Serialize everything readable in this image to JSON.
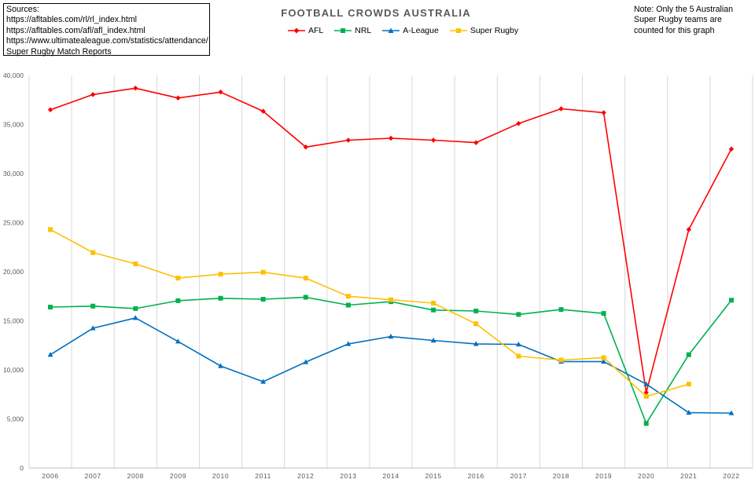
{
  "sources": {
    "heading": "Sources:",
    "lines": [
      "https://afltables.com/rl/rl_index.html",
      "https://afltables.com/afl/afl_index.html",
      "https://www.ultimatealeague.com/statistics/attendance/",
      "Super Rugby Match Reports"
    ]
  },
  "note": "Note: Only the 5 Australian Super Rugby teams are counted for this graph",
  "chart_data": {
    "type": "line",
    "title": "FOOTBALL CROWDS AUSTRALIA",
    "xlabel": "",
    "ylabel": "",
    "categories": [
      "2006",
      "2007",
      "2008",
      "2009",
      "2010",
      "2011",
      "2012",
      "2013",
      "2014",
      "2015",
      "2016",
      "2017",
      "2018",
      "2019",
      "2020",
      "2021",
      "2022"
    ],
    "ylim": [
      0,
      40000
    ],
    "yticks": [
      0,
      5000,
      10000,
      15000,
      20000,
      25000,
      30000,
      35000,
      40000
    ],
    "ytick_labels": [
      "0",
      "5,000",
      "10,000",
      "15,000",
      "20,000",
      "25,000",
      "30,000",
      "35,000",
      "40,000"
    ],
    "grid": "vertical",
    "legend_position": "top",
    "series": [
      {
        "name": "AFL",
        "color": "#ff0000",
        "marker": "diamond",
        "values": [
          36500,
          38050,
          38700,
          37700,
          38300,
          36350,
          32700,
          33400,
          33600,
          33400,
          33150,
          35100,
          36600,
          36200,
          7700,
          24300,
          32500
        ]
      },
      {
        "name": "NRL",
        "color": "#00b050",
        "marker": "square",
        "values": [
          16400,
          16500,
          16250,
          17050,
          17300,
          17200,
          17400,
          16600,
          16950,
          16100,
          16000,
          15650,
          16150,
          15750,
          4550,
          11550,
          17100
        ]
      },
      {
        "name": "A-League",
        "color": "#0070c0",
        "marker": "triangle",
        "values": [
          11550,
          14250,
          15300,
          12900,
          10400,
          8800,
          10800,
          12650,
          13400,
          13000,
          12650,
          12600,
          10850,
          10850,
          8550,
          5650,
          5600
        ]
      },
      {
        "name": "Super Rugby",
        "color": "#ffc000",
        "marker": "square",
        "values": [
          24300,
          21950,
          20800,
          19350,
          19750,
          19950,
          19350,
          17500,
          17150,
          16800,
          14700,
          11400,
          11000,
          11250,
          7300,
          8550,
          null
        ]
      }
    ]
  }
}
